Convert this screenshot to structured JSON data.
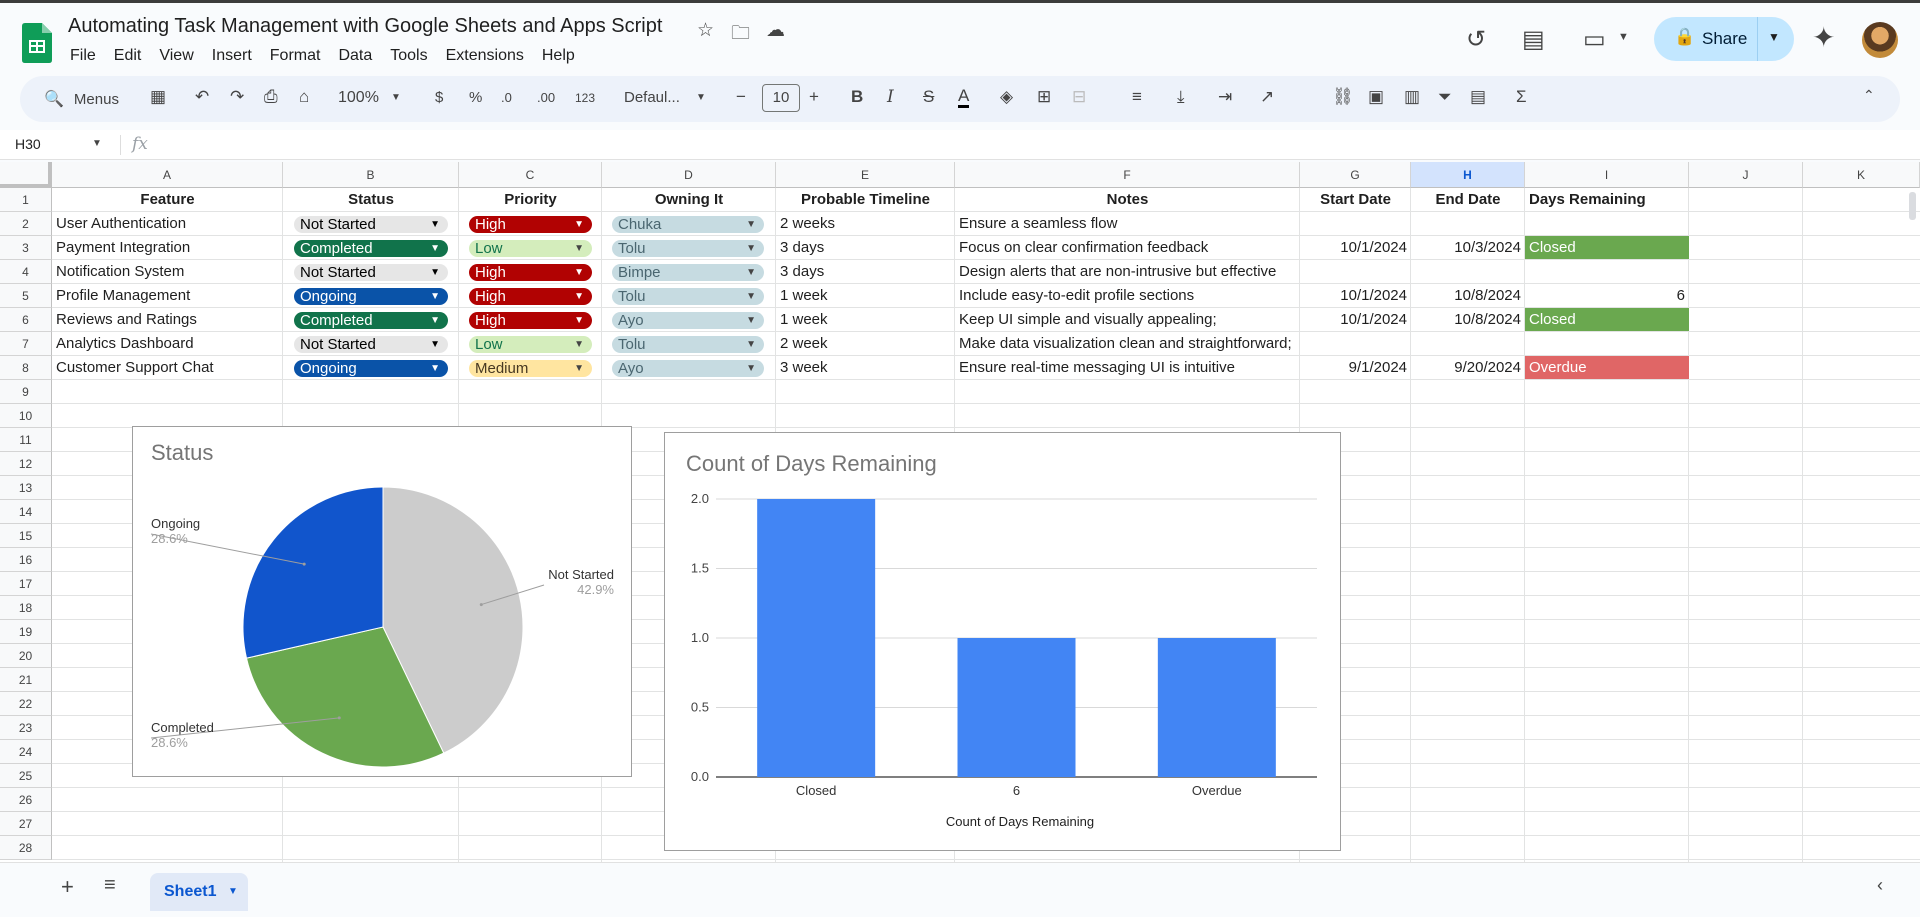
{
  "app": {
    "title": "Automating Task Management with Google Sheets and Apps Script",
    "menu": [
      "File",
      "Edit",
      "View",
      "Insert",
      "Format",
      "Data",
      "Tools",
      "Extensions",
      "Help"
    ],
    "share_label": "Share"
  },
  "toolbar": {
    "menus_label": "Menus",
    "zoom": "100%",
    "currency": "$",
    "percent": "%",
    "dec_decrease": ".0",
    "dec_increase": ".00",
    "number_format": "123",
    "font": "Defaul...",
    "font_size": "10",
    "bold": "B",
    "italic": "I",
    "strike": "S",
    "text_color": "A",
    "sigma": "Σ"
  },
  "formula_bar": {
    "cell_ref": "H30",
    "fx": "fx",
    "value": ""
  },
  "columns": [
    "A",
    "B",
    "C",
    "D",
    "E",
    "F",
    "G",
    "H",
    "I",
    "J",
    "K"
  ],
  "rows": [
    "1",
    "2",
    "3",
    "4",
    "5",
    "6",
    "7",
    "8",
    "9",
    "10",
    "11",
    "12",
    "13",
    "14",
    "15",
    "16",
    "17",
    "18",
    "19",
    "20",
    "21",
    "22",
    "23",
    "24",
    "25",
    "26",
    "27",
    "28"
  ],
  "table": {
    "headers": [
      "Feature",
      "Status",
      "Priority",
      "Owning It",
      "Probable Timeline",
      "Notes",
      "Start Date",
      "End Date",
      "Days Remaining"
    ],
    "rows": [
      {
        "feature": "User Authentication",
        "status": "Not Started",
        "priority": "High",
        "owner": "Chuka",
        "timeline": "2 weeks",
        "notes": "Ensure a seamless flow",
        "start": "",
        "end": "",
        "remaining": ""
      },
      {
        "feature": "Payment Integration",
        "status": "Completed",
        "priority": "Low",
        "owner": "Tolu",
        "timeline": "3 days",
        "notes": "Focus on clear confirmation feedback",
        "start": "10/1/2024",
        "end": "10/3/2024",
        "remaining": "Closed"
      },
      {
        "feature": "Notification System",
        "status": "Not Started",
        "priority": "High",
        "owner": "Bimpe",
        "timeline": "3 days",
        "notes": "Design alerts that are non-intrusive but effective",
        "start": "",
        "end": "",
        "remaining": ""
      },
      {
        "feature": "Profile Management",
        "status": "Ongoing",
        "priority": "High",
        "owner": "Tolu",
        "timeline": "1 week",
        "notes": "Include easy-to-edit profile sections",
        "start": "10/1/2024",
        "end": "10/8/2024",
        "remaining": "6"
      },
      {
        "feature": "Reviews and Ratings",
        "status": "Completed",
        "priority": "High",
        "owner": "Ayo",
        "timeline": "1 week",
        "notes": "Keep UI simple and visually appealing;",
        "start": "10/1/2024",
        "end": "10/8/2024",
        "remaining": "Closed"
      },
      {
        "feature": "Analytics Dashboard",
        "status": "Not Started",
        "priority": "Low",
        "owner": "Tolu",
        "timeline": "2 week",
        "notes": "Make data visualization clean and straightforward;",
        "start": "",
        "end": "",
        "remaining": ""
      },
      {
        "feature": "Customer Support Chat",
        "status": "Ongoing",
        "priority": "Medium",
        "owner": "Ayo",
        "timeline": "3 week",
        "notes": "Ensure real-time messaging UI is intuitive",
        "start": "9/1/2024",
        "end": "9/20/2024",
        "remaining": "Overdue"
      }
    ]
  },
  "colors": {
    "status": {
      "Not Started": "#e6e6e6",
      "Completed": "#11734b",
      "Ongoing": "#0a53a8"
    },
    "priority": {
      "High": "#b10202",
      "Low": "#d4edbc",
      "Medium": "#ffe5a0"
    },
    "owner": "#c6dbe1",
    "remaining": {
      "Closed": "#6aa84f",
      "Overdue": "#e06666"
    }
  },
  "chart_data": [
    {
      "type": "pie",
      "title": "Status",
      "slices": [
        {
          "name": "Not Started",
          "value": 3,
          "percent": "42.9%",
          "color": "#cccccc"
        },
        {
          "name": "Completed",
          "value": 2,
          "percent": "28.6%",
          "color": "#6aa84f"
        },
        {
          "name": "Ongoing",
          "value": 2,
          "percent": "28.6%",
          "color": "#1155cc"
        }
      ]
    },
    {
      "type": "bar",
      "title": "Count of Days Remaining",
      "categories": [
        "Closed",
        "6",
        "Overdue"
      ],
      "values": [
        2,
        1,
        1
      ],
      "xlabel": "Count of Days Remaining",
      "ylim": [
        0,
        2
      ],
      "yticks": [
        "0.0",
        "0.5",
        "1.0",
        "1.5",
        "2.0"
      ],
      "color": "#4285f4"
    }
  ],
  "sheets": [
    {
      "name": "Sheet1"
    }
  ]
}
